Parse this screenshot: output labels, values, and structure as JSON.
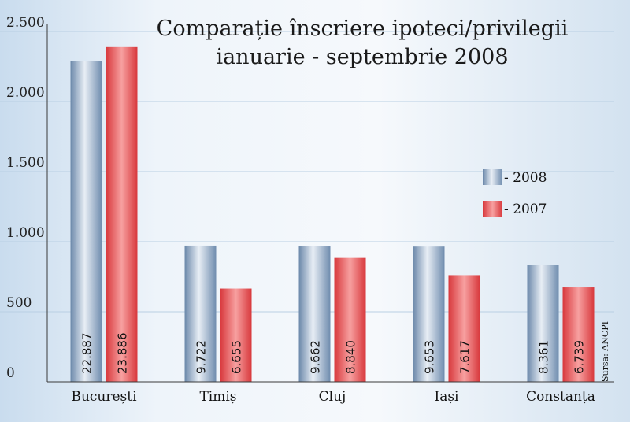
{
  "chart_data": {
    "type": "bar",
    "title_lines": [
      "Comparație înscriere ipoteci/privilegii",
      "ianuarie - septembrie 2008"
    ],
    "categories": [
      "București",
      "Timiș",
      "Cluj",
      "Iași",
      "Constanța"
    ],
    "series": [
      {
        "name": "2008",
        "values": [
          22887,
          9722,
          9662,
          9653,
          8361
        ],
        "labels": [
          "22.887",
          "9.722",
          "9.662",
          "9.653",
          "8.361"
        ],
        "color": "#8fa8c6"
      },
      {
        "name": "2007",
        "values": [
          23886,
          6655,
          8840,
          7617,
          6739
        ],
        "labels": [
          "23.886",
          "6.655",
          "8.840",
          "7.617",
          "6.739"
        ],
        "color": "#e8474a"
      }
    ],
    "y_axis": {
      "ticks": [
        0,
        500,
        1000,
        1500,
        2000,
        2500
      ],
      "tick_labels": [
        "0",
        "500",
        "1.000",
        "1.500",
        "2.000",
        "2.500"
      ],
      "ylim": [
        0,
        2500
      ]
    },
    "value_scale_note_hidden": 10,
    "legend": {
      "position": "right",
      "entries": [
        "- 2008",
        "- 2007"
      ]
    },
    "source": "Sursa: ANCPI",
    "grid": "horizontal"
  }
}
